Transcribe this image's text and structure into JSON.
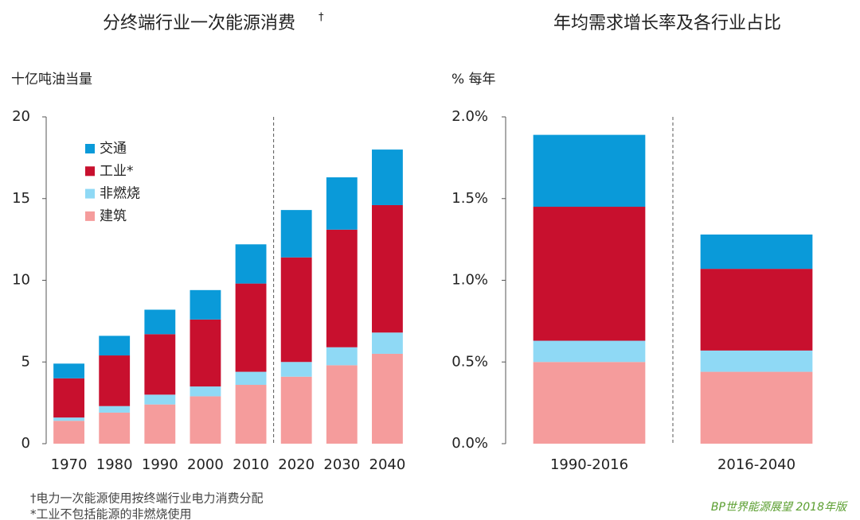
{
  "chart_data": [
    {
      "type": "bar",
      "stacked": true,
      "title": "分终端行业一次能源消费",
      "title_note_mark": "†",
      "y_label": "十亿吨油当量",
      "categories": [
        "1970",
        "1980",
        "1990",
        "2000",
        "2010",
        "2020",
        "2030",
        "2040"
      ],
      "series": [
        {
          "name": "建筑",
          "color": "#f59c9c",
          "values": [
            1.4,
            1.9,
            2.4,
            2.9,
            3.6,
            4.1,
            4.8,
            5.5
          ]
        },
        {
          "name": "非燃烧",
          "color": "#8fd9f5",
          "values": [
            0.2,
            0.4,
            0.6,
            0.6,
            0.8,
            0.9,
            1.1,
            1.3
          ]
        },
        {
          "name": "工业*",
          "color": "#c8102e",
          "values": [
            2.4,
            3.1,
            3.7,
            4.1,
            5.4,
            6.4,
            7.2,
            7.8
          ]
        },
        {
          "name": "交通",
          "color": "#0a9ad9",
          "values": [
            0.9,
            1.2,
            1.5,
            1.8,
            2.4,
            2.9,
            3.2,
            3.4
          ]
        }
      ],
      "ylim": [
        0,
        20
      ],
      "yticks": [
        0,
        5,
        10,
        15,
        20
      ],
      "grid": false,
      "legend": "upper left"
    },
    {
      "type": "bar",
      "stacked": true,
      "title": "年均需求增长率及各行业占比",
      "y_label": "% 每年",
      "categories": [
        "1990-2016",
        "2016-2040"
      ],
      "series": [
        {
          "color": "#f59c9c",
          "values": [
            0.5,
            0.44
          ]
        },
        {
          "color": "#8fd9f5",
          "values": [
            0.13,
            0.13
          ]
        },
        {
          "color": "#c8102e",
          "values": [
            0.82,
            0.5
          ]
        },
        {
          "color": "#0a9ad9",
          "values": [
            0.44,
            0.21
          ]
        }
      ],
      "ylim": [
        0,
        2
      ],
      "yticks": [
        {
          "value": 0,
          "label": "0.0%"
        },
        {
          "value": 0.5,
          "label": "0.5%"
        },
        {
          "value": 1,
          "label": "1.0%"
        },
        {
          "value": 1.5,
          "label": "1.5%"
        },
        {
          "value": 2,
          "label": "2.0%"
        }
      ],
      "grid": false
    }
  ],
  "footnotes": [
    "†电力一次能源使用按终端行业电力消费分配",
    "*工业不包括能源的非燃烧使用"
  ],
  "source": "BP世界能源展望 2018年版"
}
